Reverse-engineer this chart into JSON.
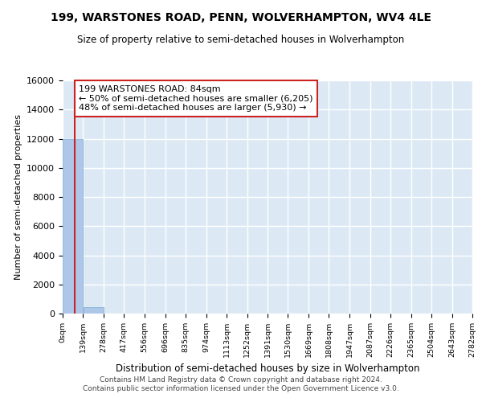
{
  "title": "199, WARSTONES ROAD, PENN, WOLVERHAMPTON, WV4 4LE",
  "subtitle": "Size of property relative to semi-detached houses in Wolverhampton",
  "xlabel": "Distribution of semi-detached houses by size in Wolverhampton",
  "ylabel": "Number of semi-detached properties",
  "property_size": 84,
  "annotation_line1": "199 WARSTONES ROAD: 84sqm",
  "annotation_line2": "← 50% of semi-detached houses are smaller (6,205)",
  "annotation_line3": "48% of semi-detached houses are larger (5,930) →",
  "bin_edges": [
    0,
    139,
    278,
    417,
    556,
    696,
    835,
    974,
    1113,
    1252,
    1391,
    1530,
    1669,
    1808,
    1947,
    2087,
    2226,
    2365,
    2504,
    2643,
    2782
  ],
  "bin_counts": [
    12000,
    430,
    15,
    5,
    3,
    2,
    1,
    1,
    1,
    0,
    0,
    1,
    0,
    0,
    0,
    0,
    0,
    0,
    0,
    0
  ],
  "bar_color": "#aec6e8",
  "bar_edge_color": "#7aadd4",
  "vline_color": "#cc2222",
  "annotation_box_edgecolor": "#cc2222",
  "background_color": "#dce9f5",
  "grid_color": "#ffffff",
  "ylim": [
    0,
    16000
  ],
  "yticks": [
    0,
    2000,
    4000,
    6000,
    8000,
    10000,
    12000,
    14000,
    16000
  ],
  "footer_line1": "Contains HM Land Registry data © Crown copyright and database right 2024.",
  "footer_line2": "Contains public sector information licensed under the Open Government Licence v3.0."
}
